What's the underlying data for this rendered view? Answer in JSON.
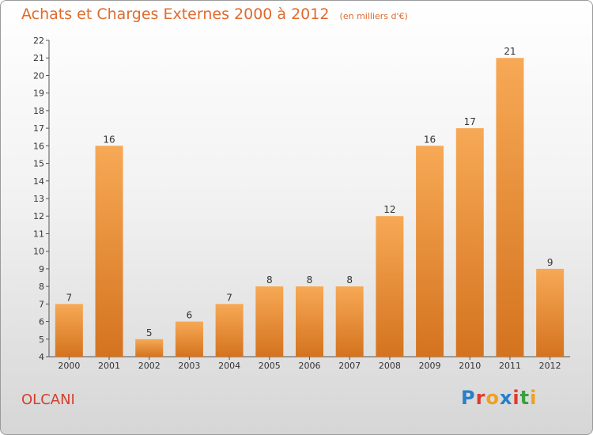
{
  "header": {
    "title": "Achats et Charges Externes 2000 à 2012",
    "unit": "(en milliers d'€)"
  },
  "footer": {
    "commune": "OLCANI",
    "logo_text": "Proxiti"
  },
  "colors": {
    "bar_top": "#f7a955",
    "bar_bottom": "#d4731f",
    "title": "#e06a2c",
    "commune": "#d2402e"
  },
  "chart_data": {
    "type": "bar",
    "categories": [
      "2000",
      "2001",
      "2002",
      "2003",
      "2004",
      "2005",
      "2006",
      "2007",
      "2008",
      "2009",
      "2010",
      "2011",
      "2012"
    ],
    "values": [
      7,
      16,
      5,
      6,
      7,
      8,
      8,
      8,
      12,
      16,
      17,
      21,
      9
    ],
    "ylim": [
      4,
      22
    ],
    "yticks": [
      4,
      5,
      6,
      7,
      8,
      9,
      10,
      11,
      12,
      13,
      14,
      15,
      16,
      17,
      18,
      19,
      20,
      21,
      22
    ],
    "grid": false,
    "title": "Achats et Charges Externes 2000 à 2012",
    "xlabel": "",
    "ylabel": ""
  }
}
